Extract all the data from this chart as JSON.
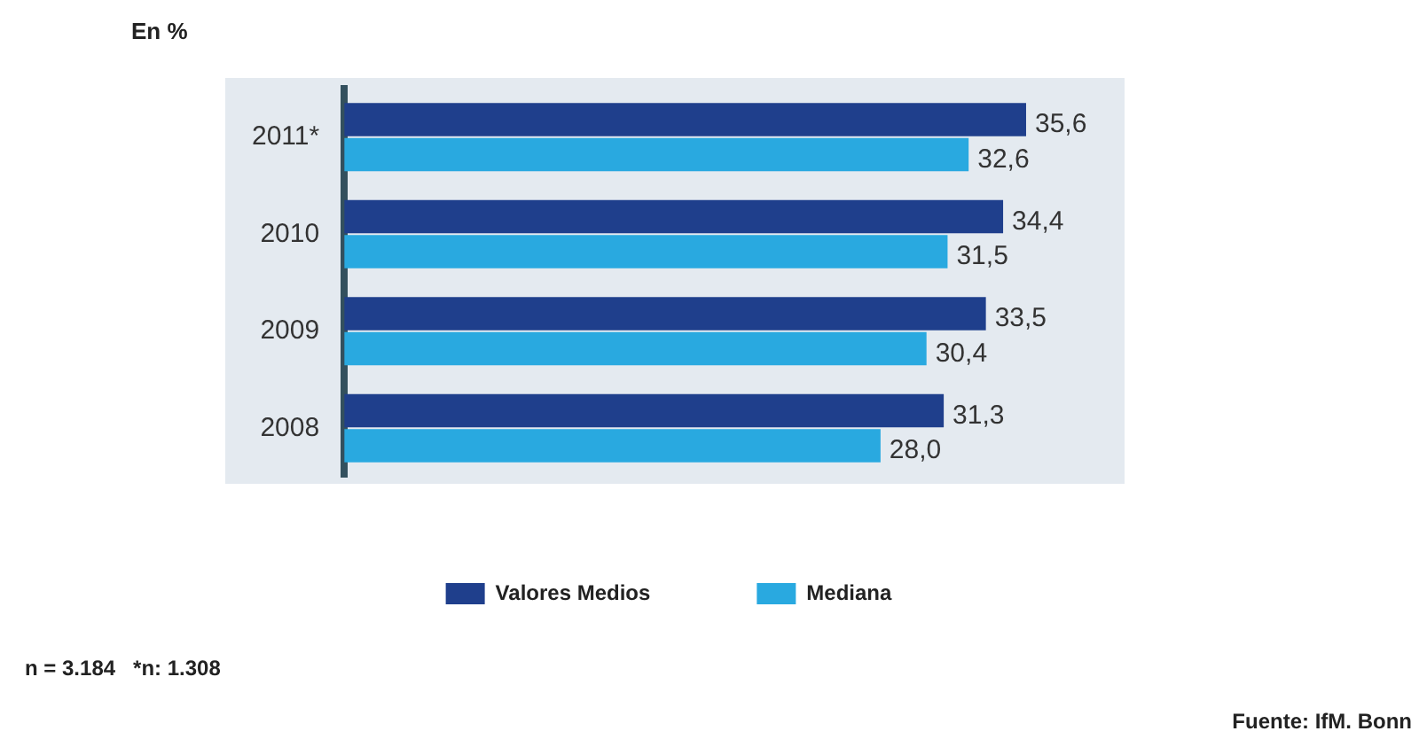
{
  "chart_data": {
    "type": "bar",
    "orientation": "horizontal",
    "title": "En %",
    "categories": [
      "2011*",
      "2010",
      "2009",
      "2008"
    ],
    "series": [
      {
        "name": "Valores Medios",
        "color": "#1f3f8c",
        "values": [
          35.6,
          34.4,
          33.5,
          31.3
        ],
        "value_labels": [
          "35,6",
          "34,4",
          "33,5",
          "31,3"
        ]
      },
      {
        "name": "Mediana",
        "color": "#29a9e0",
        "values": [
          32.6,
          31.5,
          30.4,
          28.0
        ],
        "value_labels": [
          "32,6",
          "31,5",
          "30,4",
          "28,0"
        ]
      }
    ],
    "tick_labels": "y",
    "legend": "bottom",
    "annotations": [
      "n = 3.184   *n: 1.308",
      "Fuente: IfM. Bonn"
    ]
  }
}
